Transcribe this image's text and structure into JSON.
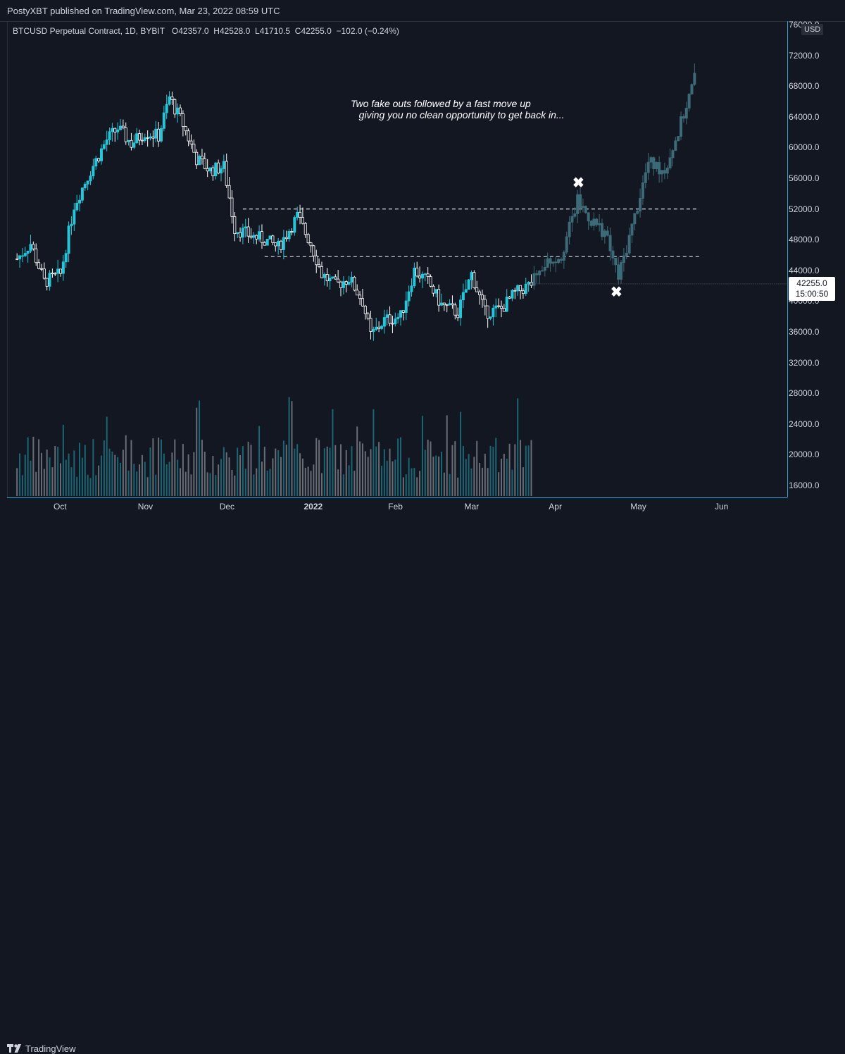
{
  "header": {
    "published": "PostyXBT published on TradingView.com, Mar 23, 2022 08:59 UTC"
  },
  "legend": {
    "symbol": "BTCUSD Perpetual Contract, 1D, BYBIT",
    "o_label": "O",
    "o_value": "42357.0",
    "h_label": "H",
    "h_value": "42528.0",
    "l_label": "L",
    "l_value": "41710.5",
    "c_label": "C",
    "c_value": "42255.0",
    "change": "−102.0 (−0.24%)"
  },
  "annotation": "Two fake outs followed by a fast move up\n   giving you no clean opportunity to get back in...",
  "price_axis": {
    "currency": "USD",
    "ticks": [
      "76000.0",
      "72000.0",
      "68000.0",
      "64000.0",
      "60000.0",
      "56000.0",
      "52000.0",
      "48000.0",
      "44000.0",
      "40000.0",
      "36000.0",
      "32000.0",
      "28000.0",
      "24000.0",
      "20000.0",
      "16000.0"
    ],
    "last_price": "42255.0",
    "countdown": "15:00:50"
  },
  "time_axis": {
    "ticks": [
      "Oct",
      "Nov",
      "Dec",
      "2022",
      "Feb",
      "Mar",
      "Apr",
      "May",
      "Jun"
    ]
  },
  "footer": {
    "brand": "TradingView"
  },
  "colors": {
    "up": "#26c6da",
    "down": "#ffffff",
    "projection": "#3d6b78",
    "background": "#131722",
    "axis": "#2aa3d3"
  },
  "chart_data": {
    "type": "candlestick",
    "y_axis": {
      "scale": "linear",
      "min": 15000,
      "max": 76000
    },
    "levels": [
      52000,
      45800
    ],
    "fakeout_markers": [
      "Apr",
      "late Apr"
    ],
    "anchors_close": [
      {
        "t": "Sep 15",
        "v": 45500
      },
      {
        "t": "Sep 20",
        "v": 47500
      },
      {
        "t": "Sep 25",
        "v": 42500
      },
      {
        "t": "Oct 1",
        "v": 43500
      },
      {
        "t": "Oct 6",
        "v": 52500
      },
      {
        "t": "Oct 12",
        "v": 57000
      },
      {
        "t": "Oct 18",
        "v": 61000
      },
      {
        "t": "Oct 22",
        "v": 62500
      },
      {
        "t": "Oct 27",
        "v": 60500
      },
      {
        "t": "Nov 1",
        "v": 62000
      },
      {
        "t": "Nov 6",
        "v": 61500
      },
      {
        "t": "Nov 10",
        "v": 66500
      },
      {
        "t": "Nov 15",
        "v": 63000
      },
      {
        "t": "Nov 20",
        "v": 58500
      },
      {
        "t": "Nov 25",
        "v": 57000
      },
      {
        "t": "Nov 30",
        "v": 57500
      },
      {
        "t": "Dec 4",
        "v": 49500
      },
      {
        "t": "Dec 10",
        "v": 48500
      },
      {
        "t": "Dec 15",
        "v": 48000
      },
      {
        "t": "Dec 20",
        "v": 47000
      },
      {
        "t": "Dec 27",
        "v": 51000
      },
      {
        "t": "Jan 1",
        "v": 47500
      },
      {
        "t": "Jan 5",
        "v": 43500
      },
      {
        "t": "Jan 10",
        "v": 42000
      },
      {
        "t": "Jan 15",
        "v": 43000
      },
      {
        "t": "Jan 20",
        "v": 40000
      },
      {
        "t": "Jan 23",
        "v": 35500
      },
      {
        "t": "Jan 28",
        "v": 37500
      },
      {
        "t": "Feb 3",
        "v": 38000
      },
      {
        "t": "Feb 8",
        "v": 44000
      },
      {
        "t": "Feb 13",
        "v": 42500
      },
      {
        "t": "Feb 18",
        "v": 39500
      },
      {
        "t": "Feb 24",
        "v": 38500
      },
      {
        "t": "Mar 1",
        "v": 43500
      },
      {
        "t": "Mar 6",
        "v": 38500
      },
      {
        "t": "Mar 12",
        "v": 39000
      },
      {
        "t": "Mar 17",
        "v": 41000
      },
      {
        "t": "Mar 23",
        "v": 42255
      },
      {
        "t": "Mar 28",
        "v": 45000
      },
      {
        "t": "Apr 3",
        "v": 46000
      },
      {
        "t": "Apr 9",
        "v": 53000
      },
      {
        "t": "Apr 14",
        "v": 50500
      },
      {
        "t": "Apr 19",
        "v": 49000
      },
      {
        "t": "Apr 24",
        "v": 43000
      },
      {
        "t": "Apr 30",
        "v": 51000
      },
      {
        "t": "May 5",
        "v": 58000
      },
      {
        "t": "May 11",
        "v": 57000
      },
      {
        "t": "May 16",
        "v": 62000
      },
      {
        "t": "May 22",
        "v": 69000
      }
    ]
  }
}
